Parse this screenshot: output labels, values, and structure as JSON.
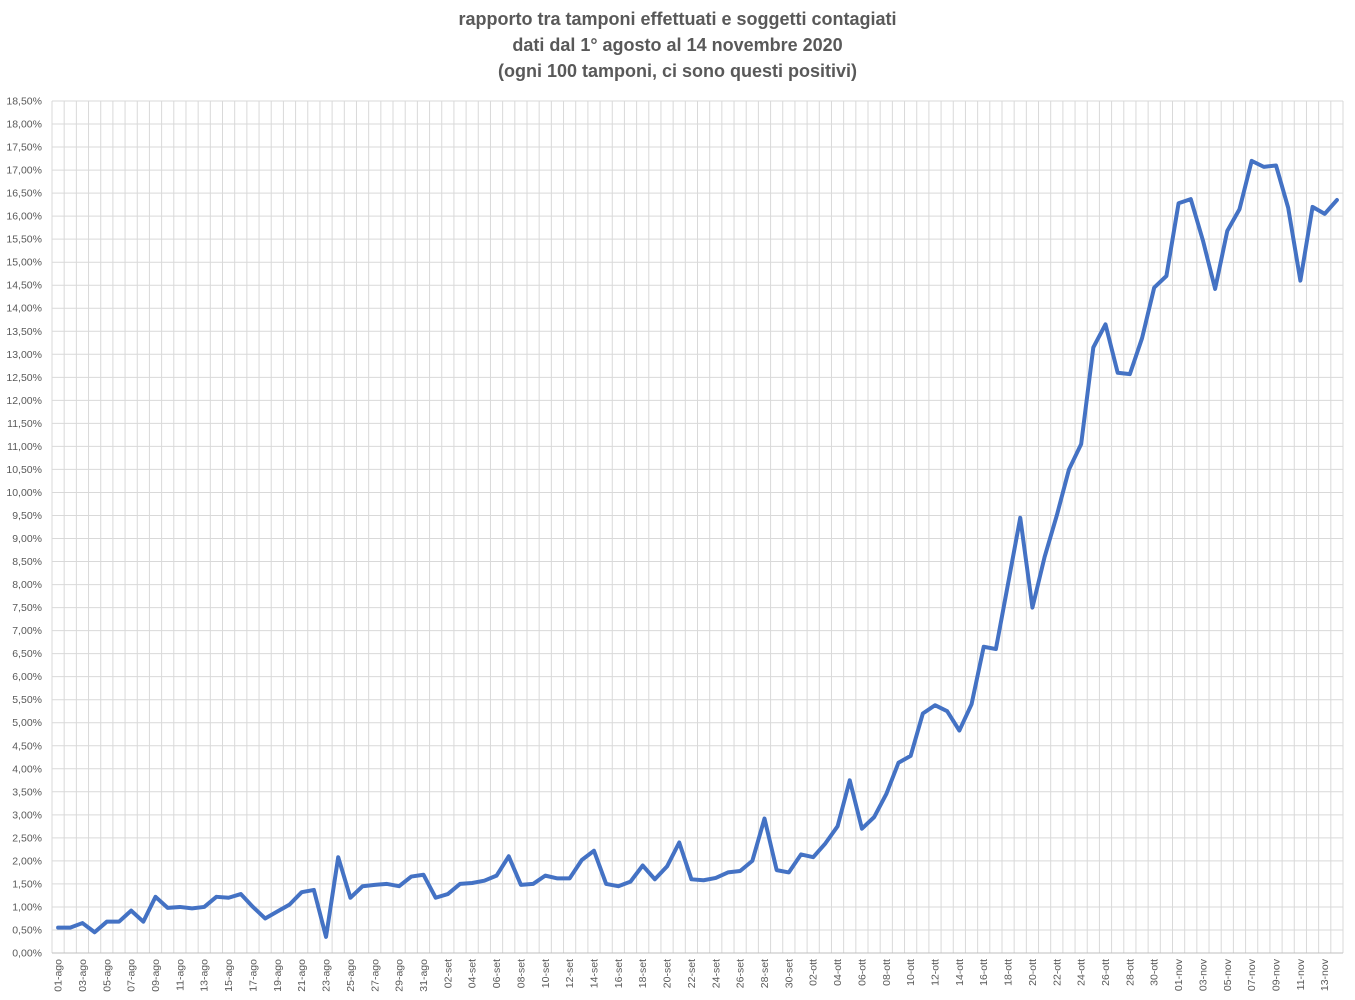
{
  "chart_data": {
    "type": "line",
    "title": "rapporto tra tamponi effettuati e soggetti contagiati",
    "subtitle": "dati dal 1° agosto al 14 novembre 2020",
    "subtitle2": "(ogni 100 tamponi, ci sono questi positivi)",
    "xlabel": "",
    "ylabel": "",
    "ylim": [
      0,
      18.5
    ],
    "ytick_step": 0.5,
    "y_tick_labels": [
      "0,00%",
      "0,50%",
      "1,00%",
      "1,50%",
      "2,00%",
      "2,50%",
      "3,00%",
      "3,50%",
      "4,00%",
      "4,50%",
      "5,00%",
      "5,50%",
      "6,00%",
      "6,50%",
      "7,00%",
      "7,50%",
      "8,00%",
      "8,50%",
      "9,00%",
      "9,50%",
      "10,00%",
      "10,50%",
      "11,00%",
      "11,50%",
      "12,00%",
      "12,50%",
      "13,00%",
      "13,50%",
      "14,00%",
      "14,50%",
      "15,00%",
      "15,50%",
      "16,00%",
      "16,50%",
      "17,00%",
      "17,50%",
      "18,00%",
      "18,50%"
    ],
    "x_tick_labels": [
      "01-ago",
      "03-ago",
      "05-ago",
      "07-ago",
      "09-ago",
      "11-ago",
      "13-ago",
      "15-ago",
      "17-ago",
      "19-ago",
      "21-ago",
      "23-ago",
      "25-ago",
      "27-ago",
      "29-ago",
      "31-ago",
      "02-set",
      "04-set",
      "06-set",
      "08-set",
      "10-set",
      "12-set",
      "14-set",
      "16-set",
      "18-set",
      "20-set",
      "22-set",
      "24-set",
      "26-set",
      "28-set",
      "30-set",
      "02-ott",
      "04-ott",
      "06-ott",
      "08-ott",
      "10-ott",
      "12-ott",
      "14-ott",
      "16-ott",
      "18-ott",
      "20-ott",
      "22-ott",
      "24-ott",
      "26-ott",
      "28-ott",
      "30-ott",
      "01-nov",
      "03-nov",
      "05-nov",
      "07-nov",
      "09-nov",
      "11-nov",
      "13-nov"
    ],
    "grid": true,
    "line_color": "#4472C4",
    "series": [
      {
        "values": [
          0.55,
          0.55,
          0.65,
          0.45,
          0.68,
          0.68,
          0.92,
          0.68,
          1.22,
          0.98,
          1.0,
          0.97,
          1.0,
          1.22,
          1.2,
          1.28,
          1.0,
          0.75,
          0.9,
          1.05,
          1.32,
          1.37,
          0.35,
          2.08,
          1.2,
          1.45,
          1.48,
          1.5,
          1.45,
          1.66,
          1.7,
          1.2,
          1.28,
          1.5,
          1.52,
          1.57,
          1.68,
          2.1,
          1.48,
          1.5,
          1.68,
          1.62,
          1.62,
          2.02,
          2.22,
          1.5,
          1.45,
          1.55,
          1.9,
          1.6,
          1.88,
          2.4,
          1.6,
          1.58,
          1.63,
          1.75,
          1.78,
          2.0,
          2.92,
          1.8,
          1.75,
          2.14,
          2.08,
          2.38,
          2.75,
          3.75,
          2.7,
          2.95,
          3.45,
          4.13,
          4.28,
          5.2,
          5.38,
          5.25,
          4.83,
          5.4,
          6.65,
          6.6,
          8.02,
          9.45,
          7.5,
          8.6,
          9.5,
          10.5,
          11.05,
          13.15,
          13.65,
          12.6,
          12.57,
          13.35,
          14.45,
          14.7,
          16.28,
          16.37,
          15.47,
          14.42,
          15.68,
          16.15,
          17.2,
          17.07,
          17.1,
          16.18,
          14.6,
          16.2,
          16.05,
          16.35
        ]
      }
    ]
  }
}
